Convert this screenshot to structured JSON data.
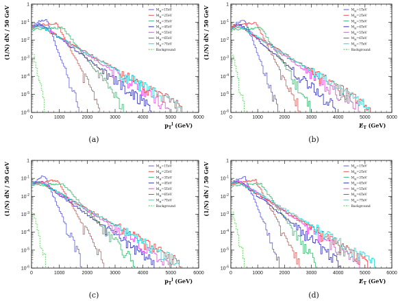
{
  "chart_data": [
    {
      "type": "line",
      "caption": "(a)",
      "xlabel": "p_T^l (GeV)",
      "ylabel": "(1/N) dN / 50 GeV",
      "xlim": [
        0,
        6000
      ],
      "ylim": [
        1e-06,
        1
      ],
      "yscale": "log",
      "xticks": [
        "0",
        "1000",
        "2000",
        "3000",
        "4000",
        "5000",
        "6000"
      ],
      "yticks": [
        "10^-6",
        "10^-5",
        "10^-4",
        "10^-3",
        "10^-2",
        "10^-1",
        "1"
      ],
      "legend_position": "top-right",
      "series": [
        {
          "name": "M_H=1TeV",
          "color": "#5b5bd6",
          "dashed": false,
          "peak_x": 500,
          "peak": 0.15,
          "low": 0.06,
          "end_x": 1700
        },
        {
          "name": "M_H=2TeV",
          "color": "#d9534f",
          "dashed": false,
          "peak_x": 900,
          "peak": 0.09,
          "low": 0.06,
          "end_x": 2450
        },
        {
          "name": "M_H=3TeV",
          "color": "#3cb371",
          "dashed": false,
          "peak_x": 1100,
          "peak": 0.05,
          "low": 0.04,
          "end_x": 3300
        },
        {
          "name": "M_H=4TeV",
          "color": "#2a2ab8",
          "dashed": false,
          "peak_x": 300,
          "peak": 0.08,
          "low": 0.05,
          "end_x": 4300
        },
        {
          "name": "M_H=5TeV",
          "color": "#e040e0",
          "dashed": false,
          "peak_x": 300,
          "peak": 0.07,
          "low": 0.05,
          "end_x": 4950
        },
        {
          "name": "M_H=6TeV",
          "color": "#e23a3a",
          "dashed": false,
          "peak_x": 300,
          "peak": 0.06,
          "low": 0.05,
          "end_x": 5400
        },
        {
          "name": "M_H=7TeV",
          "color": "#20d6d6",
          "dashed": false,
          "peak_x": 300,
          "peak": 0.06,
          "low": 0.05,
          "end_x": 5350
        },
        {
          "name": "Background",
          "color": "#44c744",
          "dashed": true,
          "peak_x": 50,
          "peak": 0.0015,
          "low": 0.0015,
          "end_x": 450
        }
      ]
    },
    {
      "type": "line",
      "caption": "(b)",
      "xlabel": "E̸_T (GeV)",
      "ylabel": "(1/N) dN / 50 GeV",
      "xlim": [
        0,
        6000
      ],
      "ylim": [
        1e-06,
        1
      ],
      "yscale": "log",
      "xticks": [
        "0",
        "1000",
        "2000",
        "3000",
        "4000",
        "5000",
        "6000"
      ],
      "yticks": [
        "10^-6",
        "10^-5",
        "10^-4",
        "10^-3",
        "10^-2",
        "10^-1",
        "1"
      ],
      "legend_position": "top-right",
      "series": [
        {
          "name": "M_H=1TeV",
          "color": "#5b5bd6",
          "dashed": false,
          "peak_x": 500,
          "peak": 0.13,
          "low": 0.06,
          "end_x": 1750
        },
        {
          "name": "M_H=2TeV",
          "color": "#d9534f",
          "dashed": false,
          "peak_x": 900,
          "peak": 0.09,
          "low": 0.06,
          "end_x": 2550
        },
        {
          "name": "M_H=3TeV",
          "color": "#3cb371",
          "dashed": false,
          "peak_x": 1100,
          "peak": 0.05,
          "low": 0.04,
          "end_x": 2950
        },
        {
          "name": "M_H=4TeV",
          "color": "#2a2ab8",
          "dashed": false,
          "peak_x": 300,
          "peak": 0.08,
          "low": 0.05,
          "end_x": 3900
        },
        {
          "name": "M_H=5TeV",
          "color": "#e040e0",
          "dashed": false,
          "peak_x": 300,
          "peak": 0.07,
          "low": 0.05,
          "end_x": 4750
        },
        {
          "name": "M_H=6TeV",
          "color": "#e23a3a",
          "dashed": false,
          "peak_x": 300,
          "peak": 0.06,
          "low": 0.05,
          "end_x": 5200
        },
        {
          "name": "M_H=7TeV",
          "color": "#20d6d6",
          "dashed": false,
          "peak_x": 300,
          "peak": 0.06,
          "low": 0.05,
          "end_x": 5150
        },
        {
          "name": "Background",
          "color": "#44c744",
          "dashed": true,
          "peak_x": 50,
          "peak": 0.0015,
          "low": 0.0015,
          "end_x": 500
        }
      ]
    },
    {
      "type": "line",
      "caption": "(c)",
      "xlabel": "p_T^l (GeV)",
      "ylabel": "(1/N) dN / 50 GeV",
      "xlim": [
        0,
        6000
      ],
      "ylim": [
        1e-06,
        1
      ],
      "yscale": "log",
      "xticks": [
        "0",
        "1000",
        "2000",
        "3000",
        "4000",
        "5000",
        "6000"
      ],
      "yticks": [
        "10^-6",
        "10^-5",
        "10^-4",
        "10^-3",
        "10^-2",
        "10^-1",
        "1"
      ],
      "legend_position": "top-right",
      "series": [
        {
          "name": "M_H=1TeV",
          "color": "#5b5bd6",
          "dashed": false,
          "peak_x": 450,
          "peak": 0.14,
          "low": 0.05,
          "end_x": 1800
        },
        {
          "name": "M_H=2TeV",
          "color": "#d9534f",
          "dashed": false,
          "peak_x": 900,
          "peak": 0.08,
          "low": 0.05,
          "end_x": 2600
        },
        {
          "name": "M_H=3TeV",
          "color": "#3cb371",
          "dashed": false,
          "peak_x": 1100,
          "peak": 0.05,
          "low": 0.04,
          "end_x": 3700
        },
        {
          "name": "M_H=4TeV",
          "color": "#2a2ab8",
          "dashed": false,
          "peak_x": 300,
          "peak": 0.07,
          "low": 0.05,
          "end_x": 4400
        },
        {
          "name": "M_H=5TeV",
          "color": "#e040e0",
          "dashed": false,
          "peak_x": 300,
          "peak": 0.07,
          "low": 0.05,
          "end_x": 4950
        },
        {
          "name": "M_H=6TeV",
          "color": "#e23a3a",
          "dashed": false,
          "peak_x": 300,
          "peak": 0.06,
          "low": 0.05,
          "end_x": 5350
        },
        {
          "name": "M_H=7TeV",
          "color": "#20d6d6",
          "dashed": false,
          "peak_x": 300,
          "peak": 0.06,
          "low": 0.05,
          "end_x": 5300
        },
        {
          "name": "Background",
          "color": "#44c744",
          "dashed": true,
          "peak_x": 50,
          "peak": 0.0012,
          "low": 0.0012,
          "end_x": 500
        }
      ]
    },
    {
      "type": "line",
      "caption": "(d)",
      "xlabel": "E̸_T (GeV)",
      "ylabel": "(1/N) dN / 50 GeV",
      "xlim": [
        0,
        6000
      ],
      "ylim": [
        1e-06,
        1
      ],
      "yscale": "log",
      "xticks": [
        "0",
        "1000",
        "2000",
        "3000",
        "4000",
        "5000",
        "6000"
      ],
      "yticks": [
        "10^-6",
        "10^-5",
        "10^-4",
        "10^-3",
        "10^-2",
        "10^-1",
        "1"
      ],
      "legend_position": "top-right",
      "series": [
        {
          "name": "M_H=1TeV",
          "color": "#5b5bd6",
          "dashed": false,
          "peak_x": 500,
          "peak": 0.13,
          "low": 0.05,
          "end_x": 1800
        },
        {
          "name": "M_H=2TeV",
          "color": "#d9534f",
          "dashed": false,
          "peak_x": 900,
          "peak": 0.08,
          "low": 0.05,
          "end_x": 2550
        },
        {
          "name": "M_H=3TeV",
          "color": "#3cb371",
          "dashed": false,
          "peak_x": 1100,
          "peak": 0.05,
          "low": 0.04,
          "end_x": 3150
        },
        {
          "name": "M_H=4TeV",
          "color": "#2a2ab8",
          "dashed": false,
          "peak_x": 300,
          "peak": 0.07,
          "low": 0.05,
          "end_x": 4100
        },
        {
          "name": "M_H=5TeV",
          "color": "#e040e0",
          "dashed": false,
          "peak_x": 300,
          "peak": 0.07,
          "low": 0.05,
          "end_x": 4800
        },
        {
          "name": "M_H=6TeV",
          "color": "#e23a3a",
          "dashed": false,
          "peak_x": 300,
          "peak": 0.06,
          "low": 0.05,
          "end_x": 5100
        },
        {
          "name": "M_H=7TeV",
          "color": "#20d6d6",
          "dashed": false,
          "peak_x": 300,
          "peak": 0.06,
          "low": 0.05,
          "end_x": 5350
        },
        {
          "name": "Background",
          "color": "#44c744",
          "dashed": true,
          "peak_x": 50,
          "peak": 0.0012,
          "low": 0.0012,
          "end_x": 500
        }
      ]
    }
  ]
}
